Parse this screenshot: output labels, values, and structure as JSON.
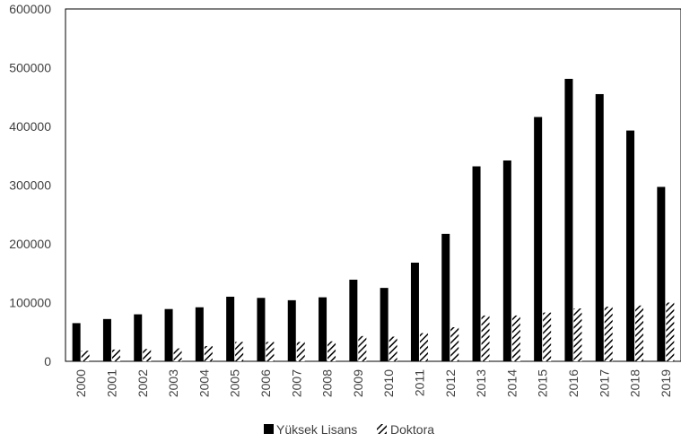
{
  "chart_data": {
    "type": "bar",
    "categories": [
      "2000",
      "2001",
      "2002",
      "2003",
      "2004",
      "2005",
      "2006",
      "2007",
      "2008",
      "2009",
      "2010",
      "2011",
      "2012",
      "2013",
      "2014",
      "2015",
      "2016",
      "2017",
      "2018",
      "2019"
    ],
    "series": [
      {
        "name": "Yüksek Lisans",
        "color": "#000000",
        "pattern": "solid",
        "values": [
          65000,
          72000,
          80000,
          89000,
          92000,
          110000,
          108000,
          104000,
          109000,
          139000,
          125000,
          168000,
          217000,
          332000,
          342000,
          416000,
          481000,
          455000,
          393000,
          297000
        ]
      },
      {
        "name": "Doktora",
        "color": "#000000",
        "pattern": "diagonal-hatch",
        "values": [
          18000,
          20000,
          21000,
          22000,
          26000,
          33000,
          33000,
          33000,
          34000,
          43000,
          42000,
          48000,
          58000,
          78000,
          78000,
          83000,
          90000,
          93000,
          95000,
          100000
        ]
      }
    ],
    "title": "",
    "xlabel": "",
    "ylabel": "",
    "ylim": [
      0,
      600000
    ],
    "yticks": [
      "0",
      "100000",
      "200000",
      "300000",
      "400000",
      "500000",
      "600000"
    ],
    "grid": false,
    "legend": {
      "position": "bottom",
      "entries": [
        "Yüksek Lisans",
        "Doktora"
      ]
    }
  }
}
